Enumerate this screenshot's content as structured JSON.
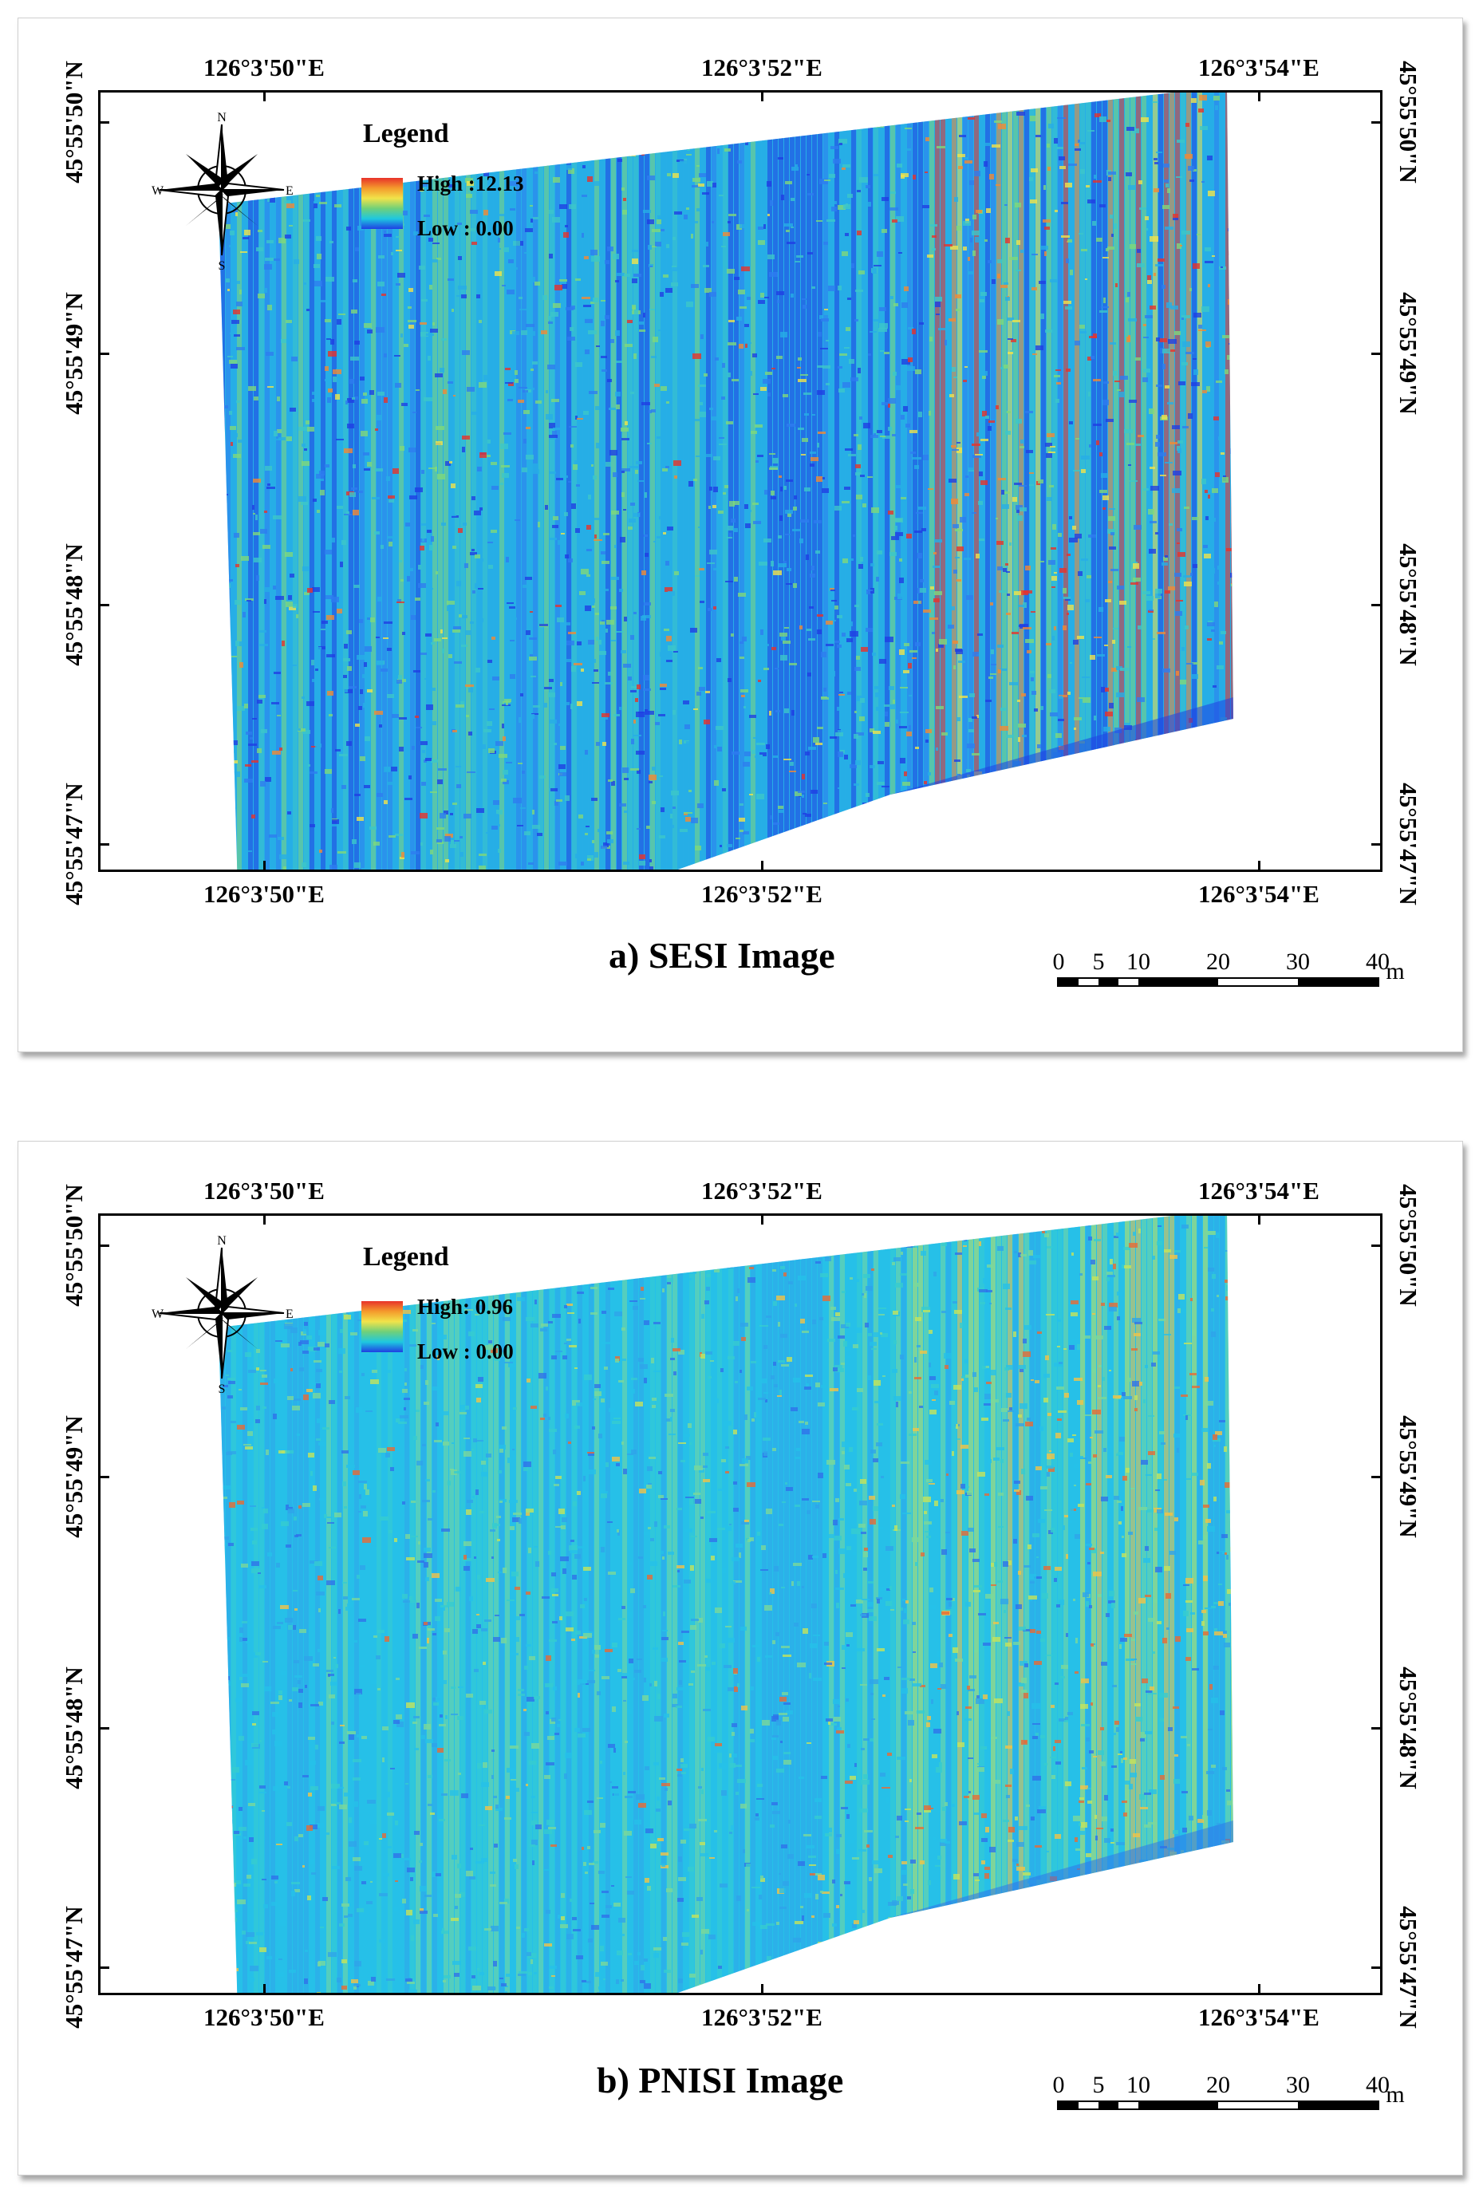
{
  "panels": [
    {
      "id": "a",
      "caption": "a)  SESI Image",
      "legend": {
        "title": "Legend",
        "high": "High :12.13",
        "low": "Low : 0.00"
      },
      "palette": [
        "#1f3fe3",
        "#2e7df0",
        "#27aee6",
        "#3cc7c9",
        "#7fd87b",
        "#f1e34a",
        "#f28a34",
        "#e8322a"
      ],
      "tone": "high"
    },
    {
      "id": "b",
      "caption": "b)  PNISI Image",
      "legend": {
        "title": "Legend",
        "high": "High: 0.96",
        "low": "Low : 0.00"
      },
      "palette": [
        "#2f72ea",
        "#2fa4ea",
        "#26c0e8",
        "#36ccd0",
        "#7ad89a",
        "#c6e35a",
        "#f2c346",
        "#e86a35"
      ],
      "tone": "low"
    }
  ],
  "axes": {
    "lon_top": [
      "126°3'50\"E",
      "126°3'52\"E",
      "126°3'54\"E"
    ],
    "lon_bottom": [
      "126°3'50\"E",
      "126°3'52\"E",
      "126°3'54\"E"
    ],
    "lat_left": [
      "45°55'50\"N",
      "45°55'49\"N",
      "45°55'48\"N",
      "45°55'47\"N"
    ],
    "lat_right": [
      "45°55'50\"N",
      "45°55'49\"N",
      "45°55'48\"N",
      "45°55'47\"N"
    ]
  },
  "compass": {
    "n": "N",
    "s": "S",
    "e": "E",
    "w": "W"
  },
  "scale": {
    "labels": [
      "0",
      "5",
      "10",
      "20",
      "30",
      "40"
    ],
    "unit": "m"
  }
}
